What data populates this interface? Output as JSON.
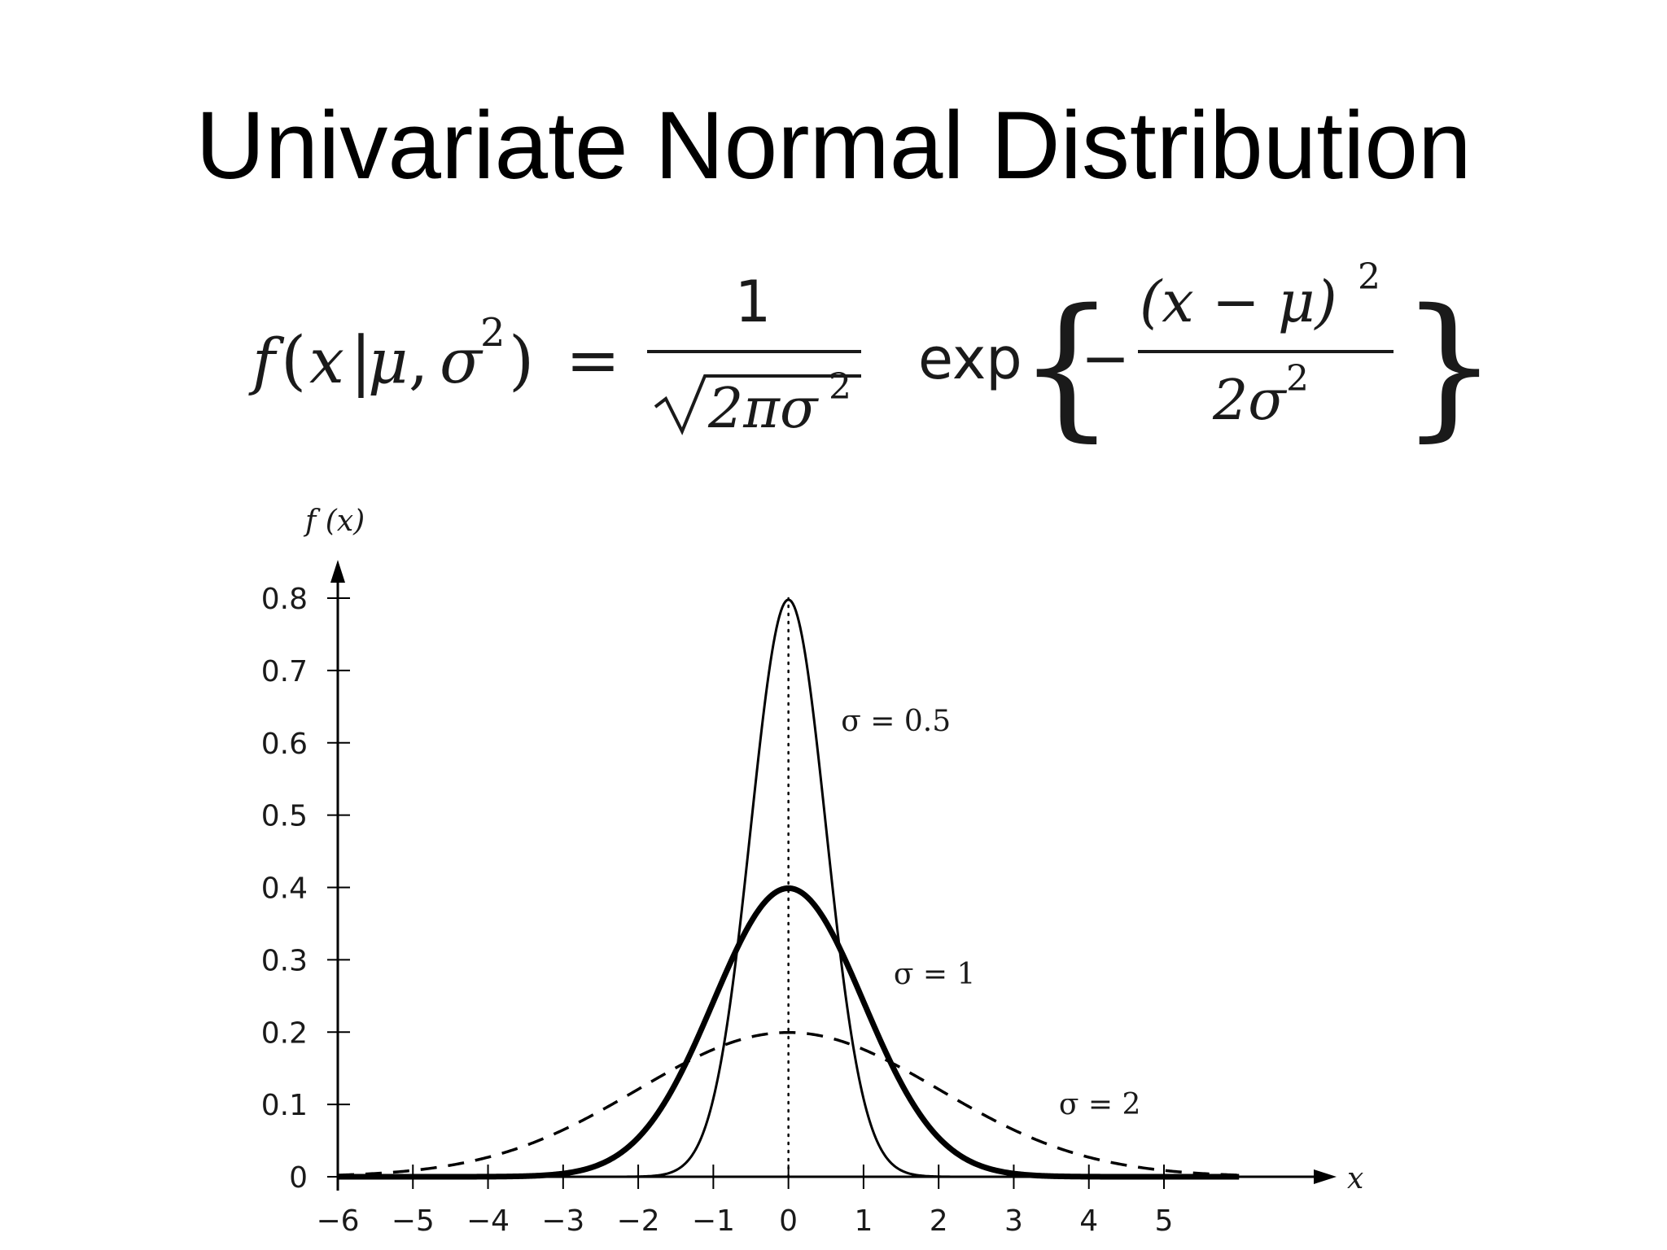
{
  "title": "Univariate Normal Distribution",
  "formula": {
    "lhs_f": "f",
    "lhs_args_open": "(",
    "lhs_x": "x",
    "lhs_bar": "|",
    "lhs_mu": "μ",
    "lhs_comma": ",",
    "lhs_sigma": "σ",
    "lhs_exp2": "2",
    "lhs_close": ")",
    "equals": "=",
    "frac_num": "1",
    "frac_den": "2πσ",
    "frac_den_exp": "2",
    "exp_word": "exp",
    "brace_open": "{",
    "minus": "−",
    "inner_num": "(x − μ)",
    "inner_num_exp": "2",
    "inner_den": "2σ",
    "inner_den_exp": "2",
    "brace_close": "}"
  },
  "chart_data": {
    "type": "line",
    "ylabel": "f (x)",
    "xlabel": "x",
    "xlim": [
      -6,
      6
    ],
    "ylim": [
      0,
      0.8
    ],
    "x_ticks": [
      -6,
      -5,
      -4,
      -3,
      -2,
      -1,
      0,
      1,
      2,
      3,
      4,
      5
    ],
    "x_tick_labels": [
      "−6",
      "−5",
      "−4",
      "−3",
      "−2",
      "−1",
      "0",
      "1",
      "2",
      "3",
      "4",
      "5"
    ],
    "y_ticks": [
      0,
      0.1,
      0.2,
      0.3,
      0.4,
      0.5,
      0.6,
      0.7,
      0.8
    ],
    "y_tick_labels": [
      "0",
      "0.1",
      "0.2",
      "0.3",
      "0.4",
      "0.5",
      "0.6",
      "0.7",
      "0.8"
    ],
    "mean_line_x": 0,
    "series": [
      {
        "name": "σ = 0.5",
        "mu": 0,
        "sigma": 0.5,
        "peak": 0.798,
        "style": "thin-solid",
        "label_at": [
          0.7,
          0.63
        ]
      },
      {
        "name": "σ = 1",
        "mu": 0,
        "sigma": 1,
        "peak": 0.399,
        "style": "thick-solid",
        "label_at": [
          1.4,
          0.28
        ]
      },
      {
        "name": "σ = 2",
        "mu": 0,
        "sigma": 2,
        "peak": 0.199,
        "style": "dashed",
        "label_at": [
          3.6,
          0.1
        ]
      }
    ],
    "colors": {
      "line": "#000000",
      "text": "#1a1a1a"
    }
  }
}
